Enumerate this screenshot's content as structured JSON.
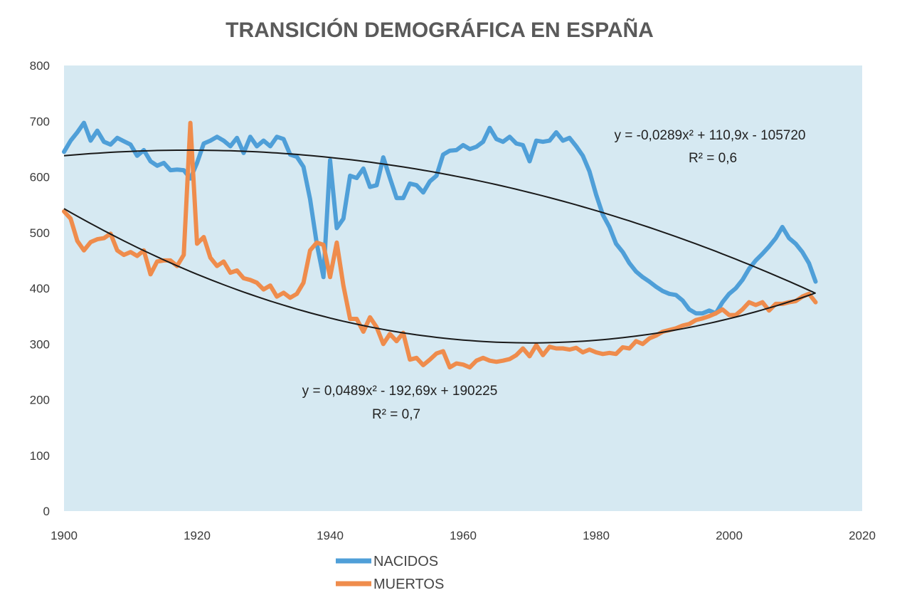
{
  "chart_data": {
    "type": "line",
    "title": "TRANSICIÓN DEMOGRÁFICA EN ESPAÑA",
    "xlabel": "",
    "ylabel": "",
    "xlim": [
      1900,
      2020
    ],
    "ylim": [
      0,
      800
    ],
    "x_ticks": [
      1900,
      1920,
      1940,
      1960,
      1980,
      2000,
      2020
    ],
    "y_ticks": [
      0,
      100,
      200,
      300,
      400,
      500,
      600,
      700,
      800
    ],
    "legend_position": "bottom-left",
    "plot_background": "#d6e9f2",
    "series": [
      {
        "name": "NACIDOS",
        "color": "#4f9fd8",
        "points": [
          [
            1900,
            645
          ],
          [
            1901,
            665
          ],
          [
            1902,
            680
          ],
          [
            1903,
            697
          ],
          [
            1904,
            665
          ],
          [
            1905,
            683
          ],
          [
            1906,
            663
          ],
          [
            1907,
            658
          ],
          [
            1908,
            670
          ],
          [
            1909,
            664
          ],
          [
            1910,
            658
          ],
          [
            1911,
            638
          ],
          [
            1912,
            648
          ],
          [
            1913,
            628
          ],
          [
            1914,
            620
          ],
          [
            1915,
            625
          ],
          [
            1916,
            612
          ],
          [
            1917,
            613
          ],
          [
            1918,
            612
          ],
          [
            1919,
            597
          ],
          [
            1920,
            625
          ],
          [
            1921,
            660
          ],
          [
            1922,
            665
          ],
          [
            1923,
            672
          ],
          [
            1924,
            665
          ],
          [
            1925,
            655
          ],
          [
            1926,
            670
          ],
          [
            1927,
            643
          ],
          [
            1928,
            672
          ],
          [
            1929,
            655
          ],
          [
            1930,
            665
          ],
          [
            1931,
            655
          ],
          [
            1932,
            672
          ],
          [
            1933,
            668
          ],
          [
            1934,
            640
          ],
          [
            1935,
            636
          ],
          [
            1936,
            618
          ],
          [
            1937,
            560
          ],
          [
            1938,
            480
          ],
          [
            1939,
            420
          ],
          [
            1940,
            630
          ],
          [
            1941,
            508
          ],
          [
            1942,
            525
          ],
          [
            1943,
            602
          ],
          [
            1944,
            598
          ],
          [
            1945,
            615
          ],
          [
            1946,
            582
          ],
          [
            1947,
            585
          ],
          [
            1948,
            635
          ],
          [
            1949,
            598
          ],
          [
            1950,
            562
          ],
          [
            1951,
            562
          ],
          [
            1952,
            588
          ],
          [
            1953,
            585
          ],
          [
            1954,
            572
          ],
          [
            1955,
            592
          ],
          [
            1956,
            602
          ],
          [
            1957,
            640
          ],
          [
            1958,
            647
          ],
          [
            1959,
            648
          ],
          [
            1960,
            657
          ],
          [
            1961,
            650
          ],
          [
            1962,
            654
          ],
          [
            1963,
            663
          ],
          [
            1964,
            688
          ],
          [
            1965,
            668
          ],
          [
            1966,
            663
          ],
          [
            1967,
            672
          ],
          [
            1968,
            660
          ],
          [
            1969,
            657
          ],
          [
            1970,
            628
          ],
          [
            1971,
            665
          ],
          [
            1972,
            663
          ],
          [
            1973,
            665
          ],
          [
            1974,
            680
          ],
          [
            1975,
            665
          ],
          [
            1976,
            670
          ],
          [
            1977,
            655
          ],
          [
            1978,
            638
          ],
          [
            1979,
            610
          ],
          [
            1980,
            568
          ],
          [
            1981,
            532
          ],
          [
            1982,
            510
          ],
          [
            1983,
            480
          ],
          [
            1984,
            465
          ],
          [
            1985,
            445
          ],
          [
            1986,
            430
          ],
          [
            1987,
            420
          ],
          [
            1988,
            412
          ],
          [
            1989,
            403
          ],
          [
            1990,
            395
          ],
          [
            1991,
            390
          ],
          [
            1992,
            388
          ],
          [
            1993,
            378
          ],
          [
            1994,
            362
          ],
          [
            1995,
            355
          ],
          [
            1996,
            355
          ],
          [
            1997,
            360
          ],
          [
            1998,
            355
          ],
          [
            1999,
            375
          ],
          [
            2000,
            390
          ],
          [
            2001,
            400
          ],
          [
            2002,
            415
          ],
          [
            2003,
            435
          ],
          [
            2004,
            450
          ],
          [
            2005,
            462
          ],
          [
            2006,
            475
          ],
          [
            2007,
            490
          ],
          [
            2008,
            510
          ],
          [
            2009,
            490
          ],
          [
            2010,
            480
          ],
          [
            2011,
            465
          ],
          [
            2012,
            445
          ],
          [
            2013,
            412
          ]
        ],
        "trendline": {
          "equation": "y = -0,0289x² + 110,9x - 105720",
          "r2": "R² = 0,6",
          "a": -0.0289,
          "b": 110.9,
          "vertex_x": 1918.7,
          "vertex_y": 648,
          "range": [
            1900,
            2013
          ]
        }
      },
      {
        "name": "MUERTOS",
        "color": "#ef8c4c",
        "points": [
          [
            1900,
            538
          ],
          [
            1901,
            525
          ],
          [
            1902,
            485
          ],
          [
            1903,
            468
          ],
          [
            1904,
            483
          ],
          [
            1905,
            488
          ],
          [
            1906,
            490
          ],
          [
            1907,
            498
          ],
          [
            1908,
            468
          ],
          [
            1909,
            460
          ],
          [
            1910,
            465
          ],
          [
            1911,
            458
          ],
          [
            1912,
            468
          ],
          [
            1913,
            425
          ],
          [
            1914,
            448
          ],
          [
            1915,
            450
          ],
          [
            1916,
            450
          ],
          [
            1917,
            440
          ],
          [
            1918,
            460
          ],
          [
            1919,
            697
          ],
          [
            1920,
            480
          ],
          [
            1921,
            492
          ],
          [
            1922,
            455
          ],
          [
            1923,
            440
          ],
          [
            1924,
            448
          ],
          [
            1925,
            428
          ],
          [
            1926,
            432
          ],
          [
            1927,
            418
          ],
          [
            1928,
            415
          ],
          [
            1929,
            410
          ],
          [
            1930,
            398
          ],
          [
            1931,
            405
          ],
          [
            1932,
            385
          ],
          [
            1933,
            392
          ],
          [
            1934,
            383
          ],
          [
            1935,
            390
          ],
          [
            1936,
            410
          ],
          [
            1937,
            468
          ],
          [
            1938,
            482
          ],
          [
            1939,
            478
          ],
          [
            1940,
            420
          ],
          [
            1941,
            482
          ],
          [
            1942,
            405
          ],
          [
            1943,
            345
          ],
          [
            1944,
            345
          ],
          [
            1945,
            322
          ],
          [
            1946,
            348
          ],
          [
            1947,
            330
          ],
          [
            1948,
            300
          ],
          [
            1949,
            318
          ],
          [
            1950,
            305
          ],
          [
            1951,
            320
          ],
          [
            1952,
            272
          ],
          [
            1953,
            275
          ],
          [
            1954,
            262
          ],
          [
            1955,
            272
          ],
          [
            1956,
            283
          ],
          [
            1957,
            287
          ],
          [
            1958,
            258
          ],
          [
            1959,
            265
          ],
          [
            1960,
            263
          ],
          [
            1961,
            258
          ],
          [
            1962,
            270
          ],
          [
            1963,
            275
          ],
          [
            1964,
            270
          ],
          [
            1965,
            268
          ],
          [
            1966,
            270
          ],
          [
            1967,
            273
          ],
          [
            1968,
            280
          ],
          [
            1969,
            292
          ],
          [
            1970,
            278
          ],
          [
            1971,
            298
          ],
          [
            1972,
            280
          ],
          [
            1973,
            295
          ],
          [
            1974,
            292
          ],
          [
            1975,
            292
          ],
          [
            1976,
            290
          ],
          [
            1977,
            293
          ],
          [
            1978,
            285
          ],
          [
            1979,
            290
          ],
          [
            1980,
            285
          ],
          [
            1981,
            282
          ],
          [
            1982,
            284
          ],
          [
            1983,
            282
          ],
          [
            1984,
            294
          ],
          [
            1985,
            292
          ],
          [
            1986,
            305
          ],
          [
            1987,
            300
          ],
          [
            1988,
            310
          ],
          [
            1989,
            315
          ],
          [
            1990,
            322
          ],
          [
            1991,
            325
          ],
          [
            1992,
            328
          ],
          [
            1993,
            333
          ],
          [
            1994,
            336
          ],
          [
            1995,
            343
          ],
          [
            1996,
            346
          ],
          [
            1997,
            350
          ],
          [
            1998,
            355
          ],
          [
            1999,
            362
          ],
          [
            2000,
            352
          ],
          [
            2001,
            352
          ],
          [
            2002,
            362
          ],
          [
            2003,
            375
          ],
          [
            2004,
            370
          ],
          [
            2005,
            375
          ],
          [
            2006,
            360
          ],
          [
            2007,
            372
          ],
          [
            2008,
            372
          ],
          [
            2009,
            375
          ],
          [
            2010,
            377
          ],
          [
            2011,
            385
          ],
          [
            2012,
            390
          ],
          [
            2013,
            375
          ]
        ],
        "trendline": {
          "equation": "y = 0,0489x² - 192,69x + 190225",
          "r2": "R² = 0,7",
          "a": 0.0489,
          "b": -192.69,
          "vertex_x": 1970.2,
          "vertex_y": 302,
          "range": [
            1900,
            2013
          ]
        }
      }
    ]
  }
}
